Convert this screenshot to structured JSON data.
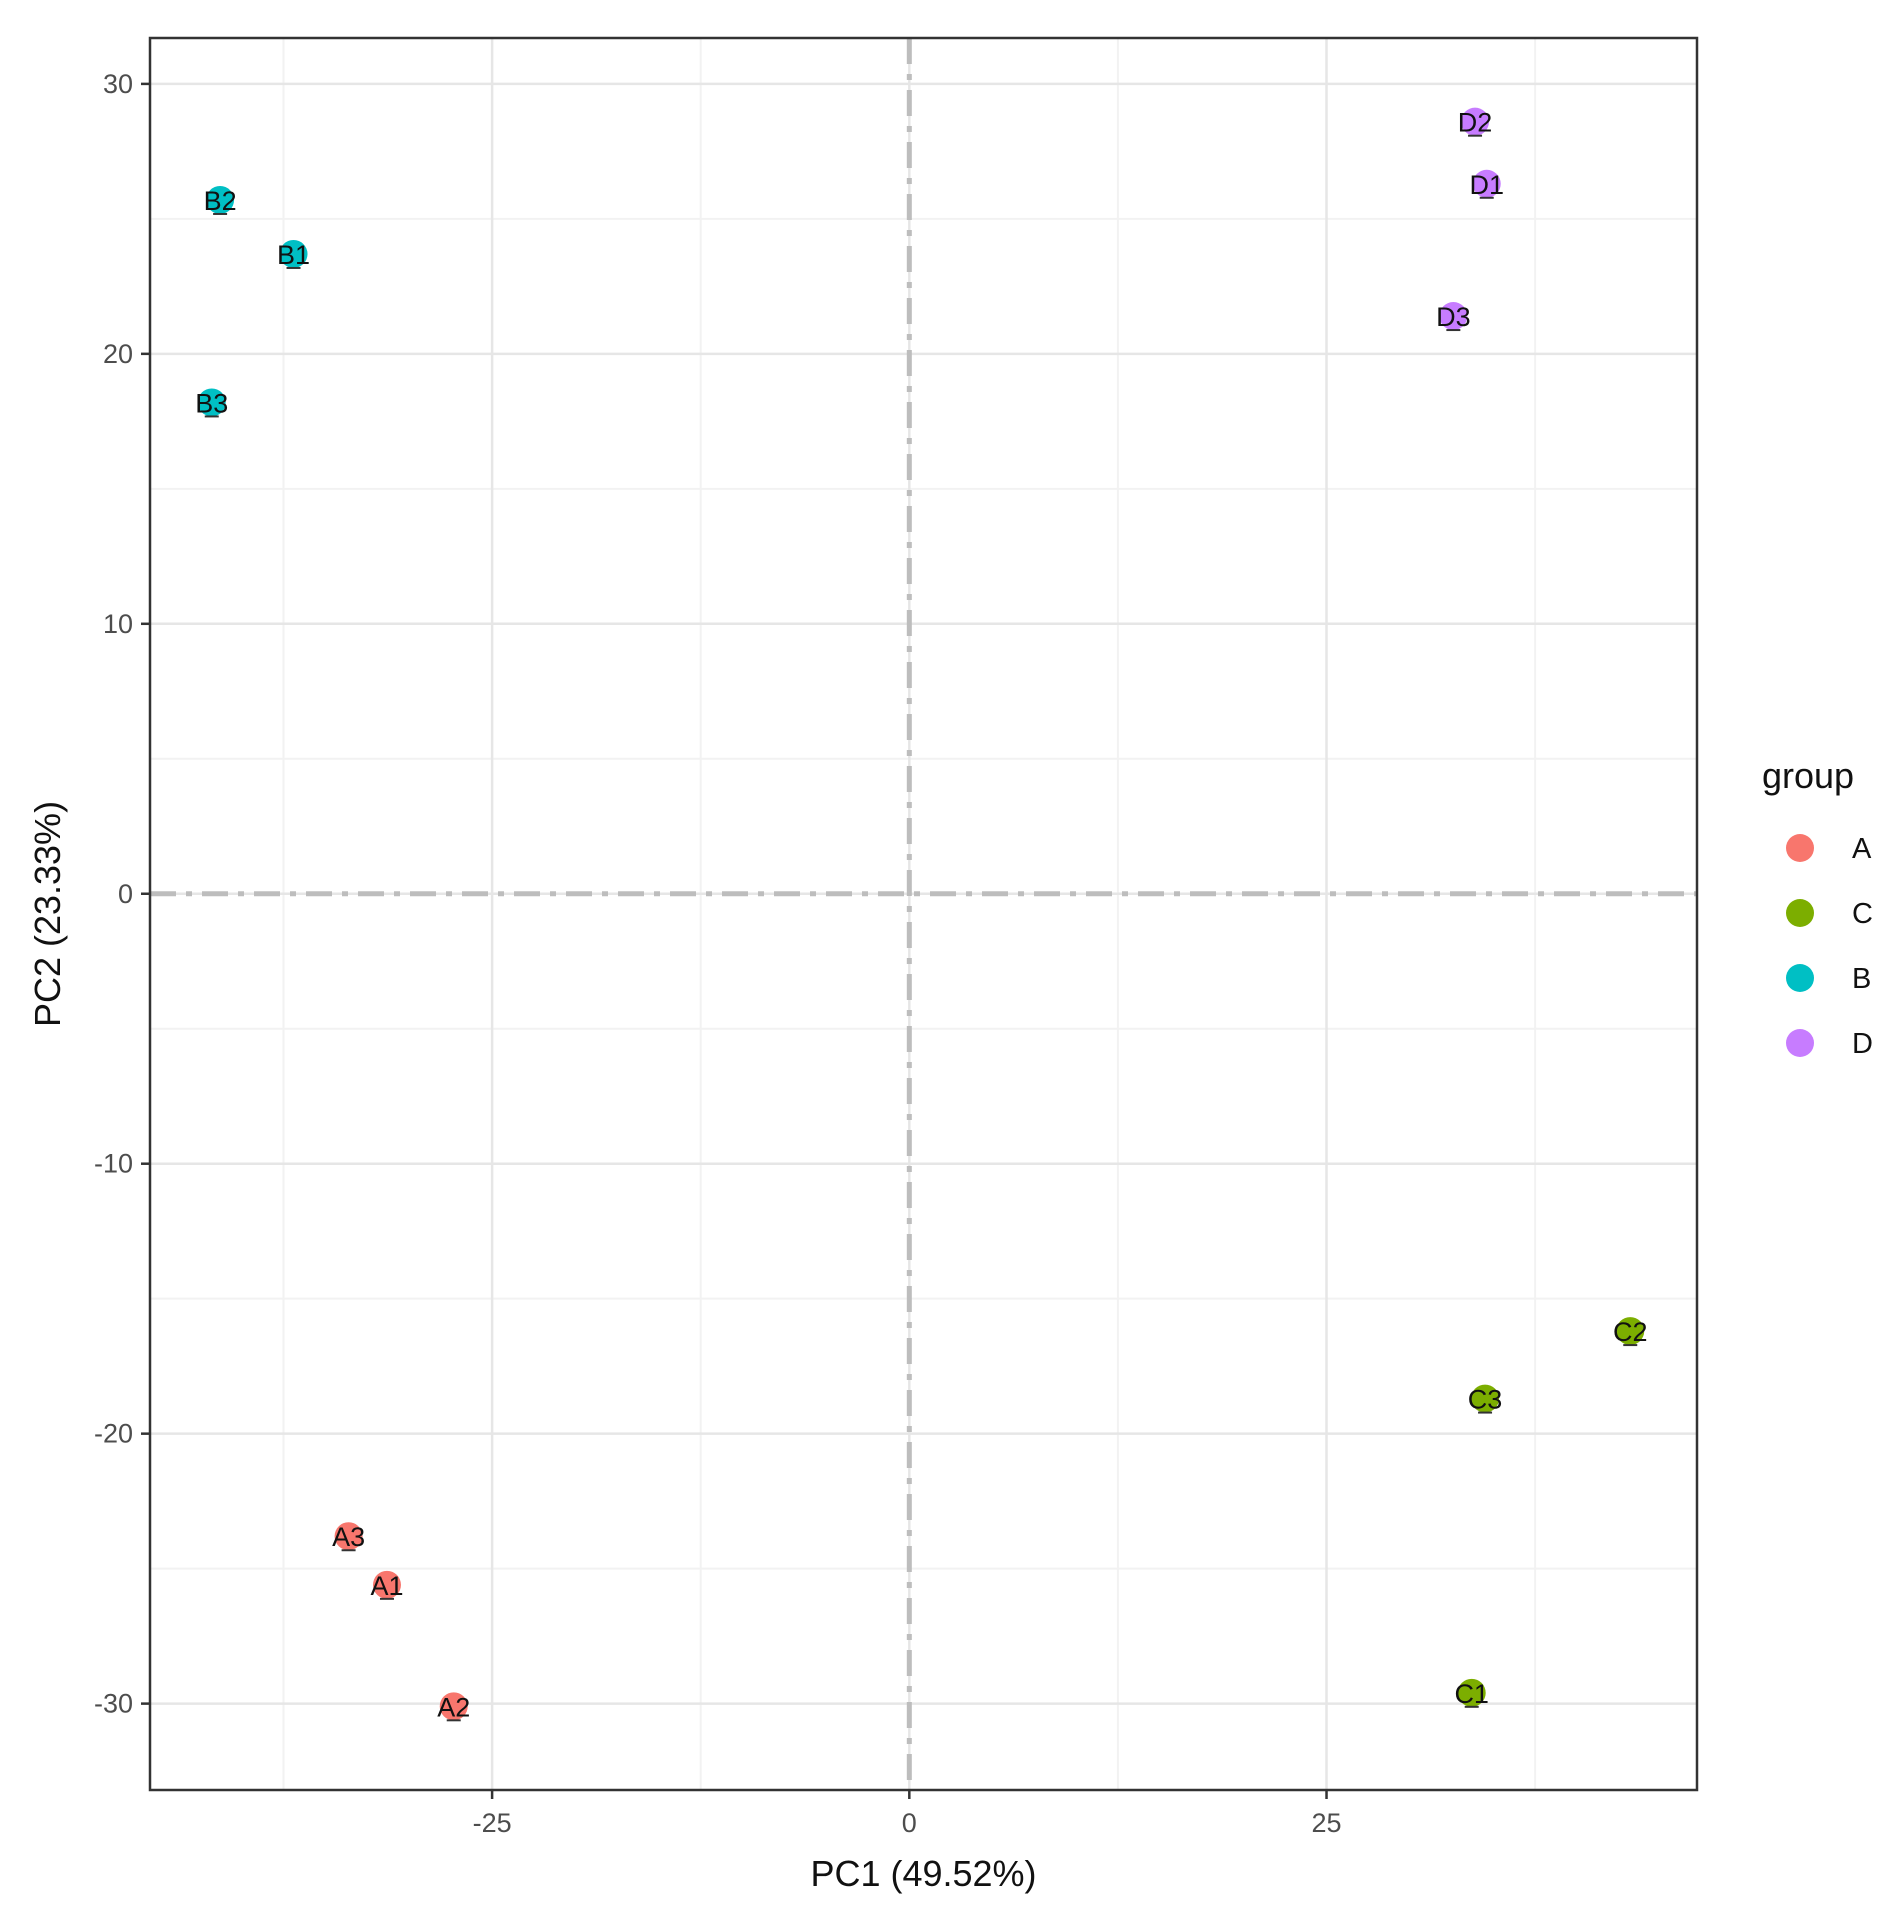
{
  "chart_data": {
    "type": "scatter",
    "title": "",
    "xlabel": "PC1 (49.52%)",
    "ylabel": "PC2 (23.33%)",
    "xlim": [
      -45.5,
      47.2
    ],
    "ylim": [
      -33.2,
      31.7
    ],
    "x_ticks": [
      -25,
      0,
      25
    ],
    "y_ticks": [
      -30,
      -20,
      -10,
      0,
      10,
      20,
      30
    ],
    "grid": true,
    "reference_lines": {
      "x": 0,
      "y": 0,
      "style": "dashdot"
    },
    "legend": {
      "title": "group",
      "position": "right",
      "entries": [
        {
          "label": "A",
          "color": "#F8766D"
        },
        {
          "label": "C",
          "color": "#7CAE00"
        },
        {
          "label": "B",
          "color": "#00BFC4"
        },
        {
          "label": "D",
          "color": "#C77CFF"
        }
      ]
    },
    "series": [
      {
        "name": "A",
        "color": "#F8766D",
        "points": [
          {
            "x": -31.3,
            "y": -25.6,
            "label": "A1"
          },
          {
            "x": -27.3,
            "y": -30.1,
            "label": "A2"
          },
          {
            "x": -33.6,
            "y": -23.8,
            "label": "A3"
          }
        ]
      },
      {
        "name": "C",
        "color": "#7CAE00",
        "points": [
          {
            "x": 33.7,
            "y": -29.6,
            "label": "C1"
          },
          {
            "x": 43.2,
            "y": -16.2,
            "label": "C2"
          },
          {
            "x": 34.5,
            "y": -18.7,
            "label": "C3"
          }
        ]
      },
      {
        "name": "B",
        "color": "#00BFC4",
        "points": [
          {
            "x": -36.9,
            "y": 23.7,
            "label": "B1"
          },
          {
            "x": -41.3,
            "y": 25.7,
            "label": "B2"
          },
          {
            "x": -41.8,
            "y": 18.2,
            "label": "B3"
          }
        ]
      },
      {
        "name": "D",
        "color": "#C77CFF",
        "points": [
          {
            "x": 34.6,
            "y": 26.3,
            "label": "D1"
          },
          {
            "x": 33.9,
            "y": 28.6,
            "label": "D2"
          },
          {
            "x": 32.6,
            "y": 21.4,
            "label": "D3"
          }
        ]
      }
    ]
  }
}
